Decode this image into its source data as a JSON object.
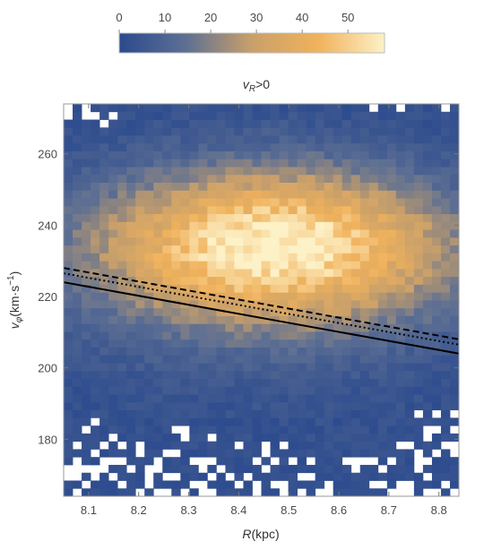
{
  "chart_data": {
    "type": "heatmap",
    "title": "v_R>0",
    "title_main": "v",
    "title_sub": "R",
    "title_tail": ">0",
    "xlabel": "R(kpc)",
    "xlabel_italic": "R",
    "xlabel_tail": "(kpc)",
    "ylabel": "v_φ(km·s⁻¹)",
    "ylabel_main": "v",
    "ylabel_sub": "φ",
    "ylabel_unit": "(km·s",
    "ylabel_sup": "−1",
    "ylabel_close": ")",
    "xlim": [
      8.05,
      8.84
    ],
    "ylim": [
      164,
      274
    ],
    "xticks": [
      "8.1",
      "8.2",
      "8.3",
      "8.4",
      "8.5",
      "8.6",
      "8.7",
      "8.8"
    ],
    "yticks": [
      "180",
      "200",
      "220",
      "240",
      "260"
    ],
    "colorbar": {
      "range": [
        0,
        58
      ],
      "ticks": [
        "0",
        "10",
        "20",
        "30",
        "40",
        "50"
      ],
      "colors": [
        "#2b4a8e",
        "#5d6f93",
        "#c9a06a",
        "#f0b25c",
        "#fdf1c7"
      ]
    },
    "bins": {
      "nx": 44,
      "ny": 50
    },
    "density_model": {
      "peak_count": 55,
      "center_R": 8.47,
      "center_vphi": 234,
      "sigma_R": 0.24,
      "sigma_vphi": 14.5
    },
    "lines": [
      {
        "style": "solid",
        "points": [
          [
            8.05,
            224.0
          ],
          [
            8.84,
            204.0
          ]
        ]
      },
      {
        "style": "dashed",
        "points": [
          [
            8.05,
            228.0
          ],
          [
            8.84,
            208.0
          ]
        ]
      },
      {
        "style": "dotted",
        "points": [
          [
            8.05,
            226.5
          ],
          [
            8.84,
            206.5
          ]
        ]
      }
    ]
  }
}
